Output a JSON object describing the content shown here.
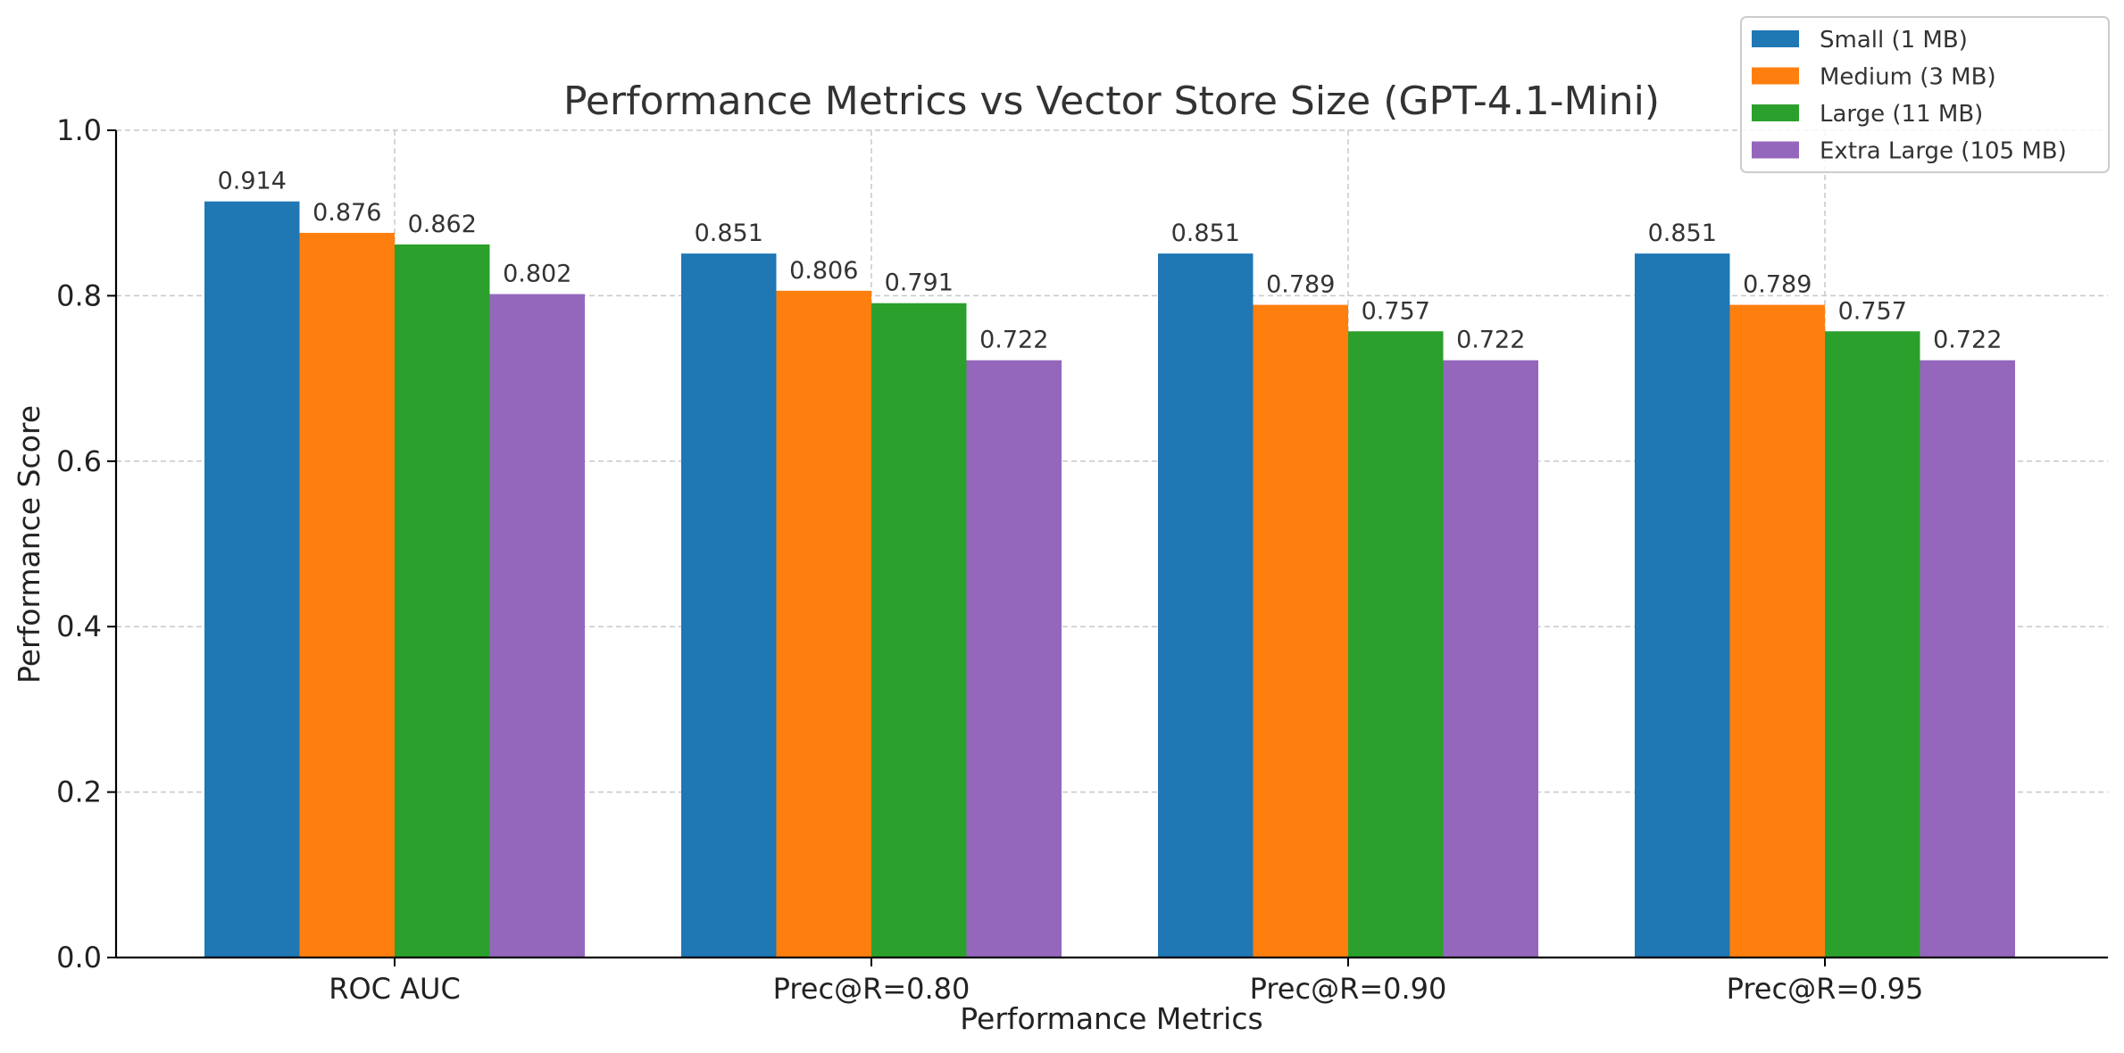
{
  "chart_data": {
    "type": "bar",
    "title": "Performance Metrics vs Vector Store Size (GPT-4.1-Mini)",
    "xlabel": "Performance Metrics",
    "ylabel": "Performance Score",
    "ylim": [
      0,
      1.0
    ],
    "yticks": [
      "0.0",
      "0.2",
      "0.4",
      "0.6",
      "0.8",
      "1.0"
    ],
    "grid": true,
    "legend_position": "top-right",
    "categories": [
      "ROC AUC",
      "Prec@R=0.80",
      "Prec@R=0.90",
      "Prec@R=0.95"
    ],
    "series": [
      {
        "name": "Small (1 MB)",
        "color": "#1f77b4",
        "values": [
          0.914,
          0.851,
          0.851,
          0.851
        ]
      },
      {
        "name": "Medium (3 MB)",
        "color": "#ff7f0e",
        "values": [
          0.876,
          0.806,
          0.789,
          0.789
        ]
      },
      {
        "name": "Large (11 MB)",
        "color": "#2ca02c",
        "values": [
          0.862,
          0.791,
          0.757,
          0.757
        ]
      },
      {
        "name": "Extra Large (105 MB)",
        "color": "#9467bd",
        "values": [
          0.802,
          0.722,
          0.722,
          0.722
        ]
      }
    ]
  }
}
